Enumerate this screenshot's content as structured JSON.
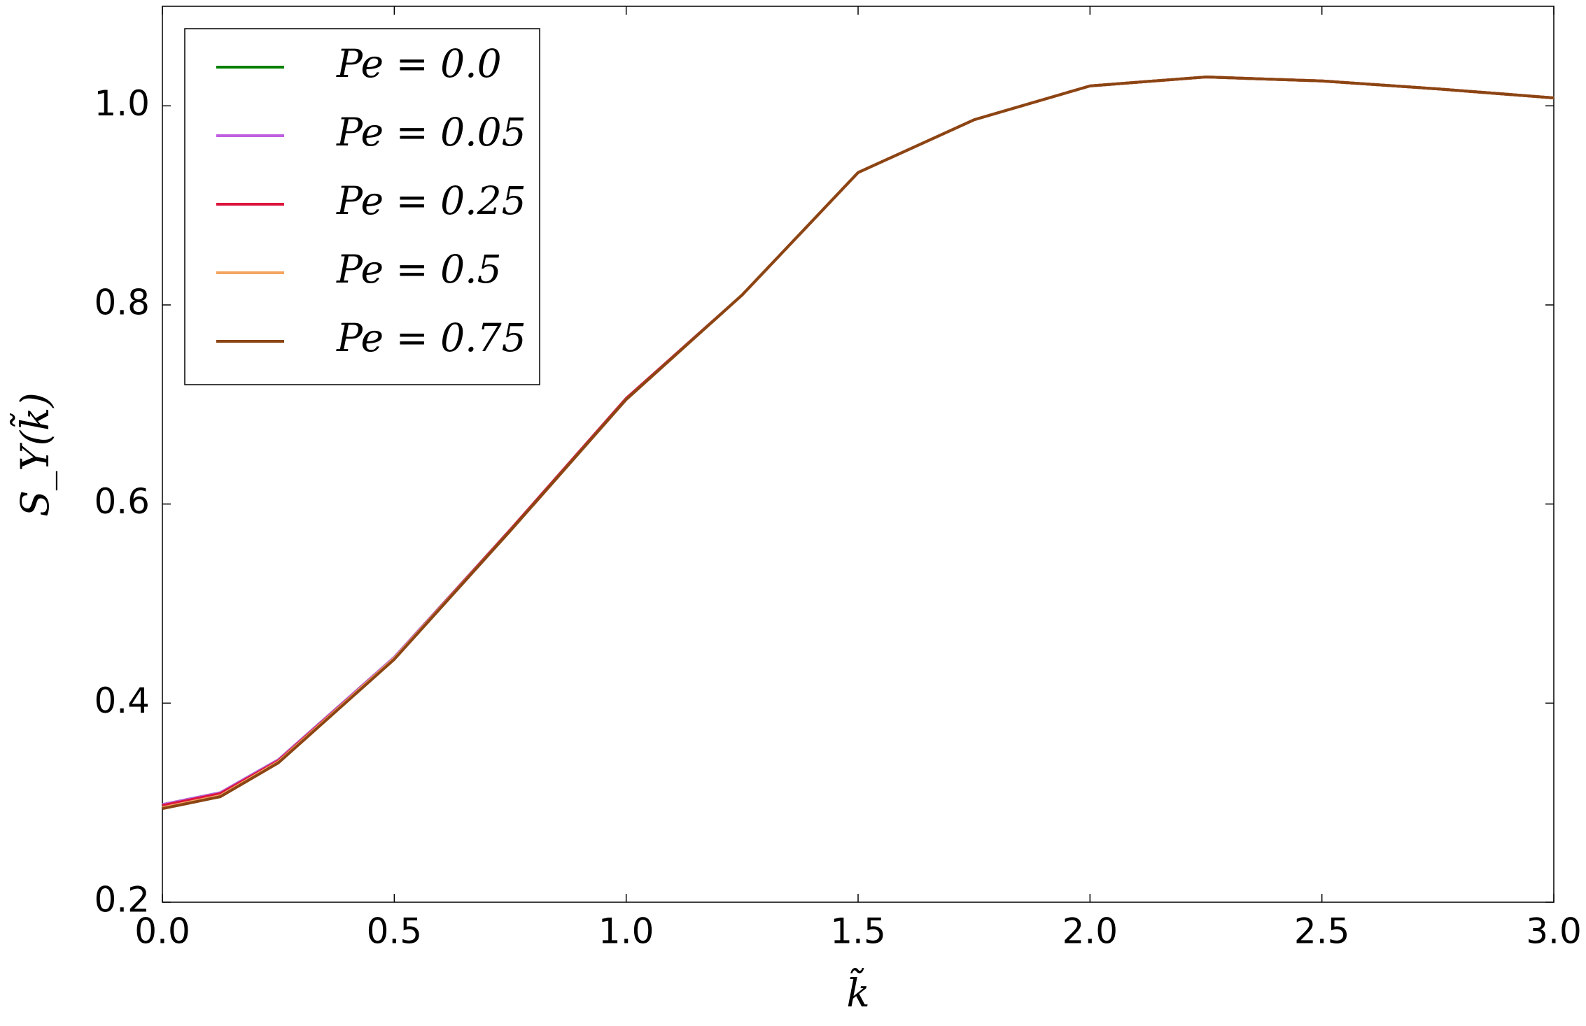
{
  "chart_data": {
    "type": "line",
    "x_label": "k̃",
    "y_label": "S_Y(k̃)",
    "x": [
      0,
      0.125,
      0.25,
      0.5,
      0.75,
      1.0,
      1.25,
      1.5,
      1.75,
      2.0,
      2.25,
      2.5,
      2.75,
      3.0
    ],
    "series": [
      {
        "name": "Pe = 0.0",
        "color": "#007f00",
        "values": [
          0.298,
          0.31,
          0.343,
          0.446,
          0.574,
          0.706,
          0.81,
          0.933,
          0.986,
          1.02,
          1.029,
          1.025,
          1.017,
          1.008
        ]
      },
      {
        "name": "Pe = 0.05",
        "color": "#bf5fdf",
        "values": [
          0.298,
          0.31,
          0.343,
          0.446,
          0.574,
          0.706,
          0.81,
          0.933,
          0.986,
          1.02,
          1.029,
          1.025,
          1.017,
          1.008
        ]
      },
      {
        "name": "Pe = 0.25",
        "color": "#dc143c",
        "values": [
          0.297,
          0.309,
          0.342,
          0.445,
          0.574,
          0.706,
          0.81,
          0.933,
          0.986,
          1.02,
          1.029,
          1.025,
          1.017,
          1.008
        ]
      },
      {
        "name": "Pe = 0.5",
        "color": "#f4a460",
        "values": [
          0.295,
          0.307,
          0.341,
          0.445,
          0.573,
          0.705,
          0.81,
          0.933,
          0.986,
          1.02,
          1.029,
          1.025,
          1.017,
          1.008
        ]
      },
      {
        "name": "Pe = 0.75",
        "color": "#8b4513",
        "values": [
          0.294,
          0.306,
          0.34,
          0.444,
          0.573,
          0.705,
          0.81,
          0.933,
          0.986,
          1.02,
          1.029,
          1.025,
          1.017,
          1.008
        ]
      }
    ],
    "xlim": [
      0,
      3.0
    ],
    "ylim": [
      0.2,
      1.1
    ],
    "xticks": [
      {
        "value": 0,
        "label": "0.0"
      },
      0.5,
      {
        "value": 1,
        "label": "1.0"
      },
      1.5,
      {
        "value": 2,
        "label": "2.0"
      },
      2.5,
      {
        "value": 3,
        "label": "3.0"
      }
    ],
    "yticks": [
      0.2,
      0.4,
      0.6,
      0.8,
      {
        "value": 1,
        "label": "1.0"
      }
    ],
    "grid": false,
    "legend": "upper left"
  }
}
